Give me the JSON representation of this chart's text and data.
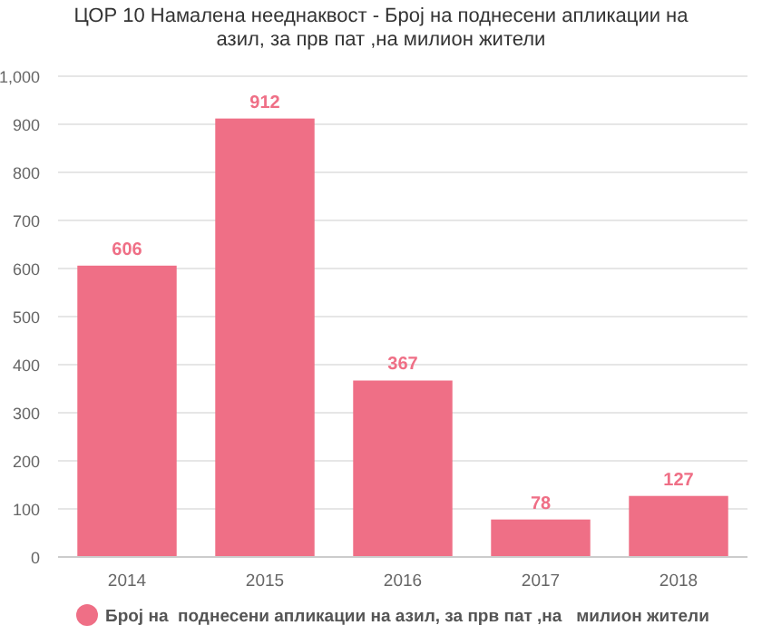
{
  "chart_data": {
    "type": "bar",
    "title": "ЦОР 10 Намалена нееднаквост - Број на поднесени апликации на азил, за прв пат ,на милион жители",
    "categories": [
      "2014",
      "2015",
      "2016",
      "2017",
      "2018"
    ],
    "series": [
      {
        "name": "Број на  поднесени апликации на азил, за прв пат ,на   милион жители",
        "color": "#ef6f86",
        "values": [
          606,
          912,
          367,
          78,
          127
        ]
      }
    ],
    "ylim": [
      0,
      1000
    ],
    "yticks": [
      0,
      100,
      200,
      300,
      400,
      500,
      600,
      700,
      800,
      {
        "value": 900,
        "label": "900"
      },
      {
        "value": 1000,
        "label": "1,000"
      }
    ],
    "grid": "y",
    "data_labels": true,
    "legend": "bottom"
  }
}
